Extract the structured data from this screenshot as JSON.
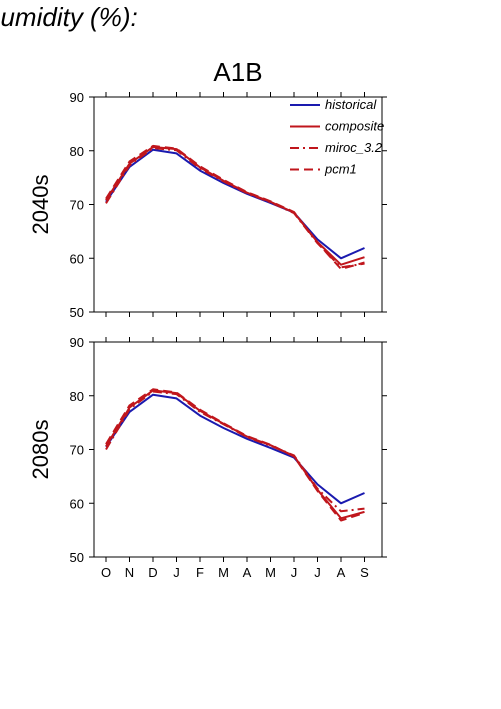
{
  "page": {
    "title": "humidity (%):"
  },
  "chart_data": [
    {
      "type": "line",
      "title": "A1B",
      "row_label": "2040s",
      "categories": [
        "O",
        "N",
        "D",
        "J",
        "F",
        "M",
        "A",
        "M",
        "J",
        "J",
        "A",
        "S"
      ],
      "ylim": [
        50,
        90
      ],
      "yticks": [
        50,
        60,
        70,
        80,
        90
      ],
      "legend_position": "top-right",
      "series": [
        {
          "name": "historical",
          "color": "#1a1aaf",
          "dash": "solid",
          "values": [
            70.5,
            77.0,
            80.2,
            79.5,
            76.3,
            74.0,
            72.0,
            70.3,
            68.5,
            63.5,
            60.0,
            61.9
          ]
        },
        {
          "name": "composite",
          "color": "#c0161c",
          "dash": "solid",
          "values": [
            70.8,
            77.6,
            80.7,
            80.3,
            76.9,
            74.4,
            72.2,
            70.5,
            68.5,
            63.0,
            58.8,
            60.2
          ]
        },
        {
          "name": "miroc_3.2",
          "color": "#c0161c",
          "dash": "dashdot",
          "values": [
            70.2,
            77.3,
            80.5,
            80.1,
            76.7,
            74.3,
            72.1,
            70.4,
            68.4,
            62.8,
            58.3,
            59.0
          ]
        },
        {
          "name": "pcm1",
          "color": "#c0161c",
          "dash": "dash",
          "values": [
            71.1,
            78.0,
            80.9,
            80.4,
            77.1,
            74.6,
            72.3,
            70.6,
            68.6,
            62.9,
            58.0,
            59.2
          ]
        }
      ]
    },
    {
      "type": "line",
      "title": "",
      "row_label": "2080s",
      "categories": [
        "O",
        "N",
        "D",
        "J",
        "F",
        "M",
        "A",
        "M",
        "J",
        "J",
        "A",
        "S"
      ],
      "ylim": [
        50,
        90
      ],
      "yticks": [
        50,
        60,
        70,
        80,
        90
      ],
      "series": [
        {
          "name": "historical",
          "color": "#1a1aaf",
          "dash": "solid",
          "values": [
            70.5,
            77.0,
            80.2,
            79.5,
            76.3,
            74.0,
            72.0,
            70.3,
            68.5,
            63.5,
            60.0,
            61.9
          ]
        },
        {
          "name": "composite",
          "color": "#c0161c",
          "dash": "solid",
          "values": [
            70.6,
            77.8,
            81.0,
            80.5,
            77.2,
            74.8,
            72.4,
            70.8,
            68.8,
            62.5,
            57.2,
            58.4
          ]
        },
        {
          "name": "miroc_3.2",
          "color": "#c0161c",
          "dash": "dashdot",
          "values": [
            70.0,
            77.5,
            80.8,
            80.3,
            77.0,
            74.7,
            72.3,
            70.7,
            68.9,
            62.7,
            58.5,
            59.0
          ]
        },
        {
          "name": "pcm1",
          "color": "#c0161c",
          "dash": "dash",
          "values": [
            71.0,
            78.2,
            81.2,
            80.6,
            77.4,
            74.9,
            72.5,
            70.9,
            68.7,
            62.3,
            56.8,
            58.2
          ]
        }
      ]
    }
  ]
}
